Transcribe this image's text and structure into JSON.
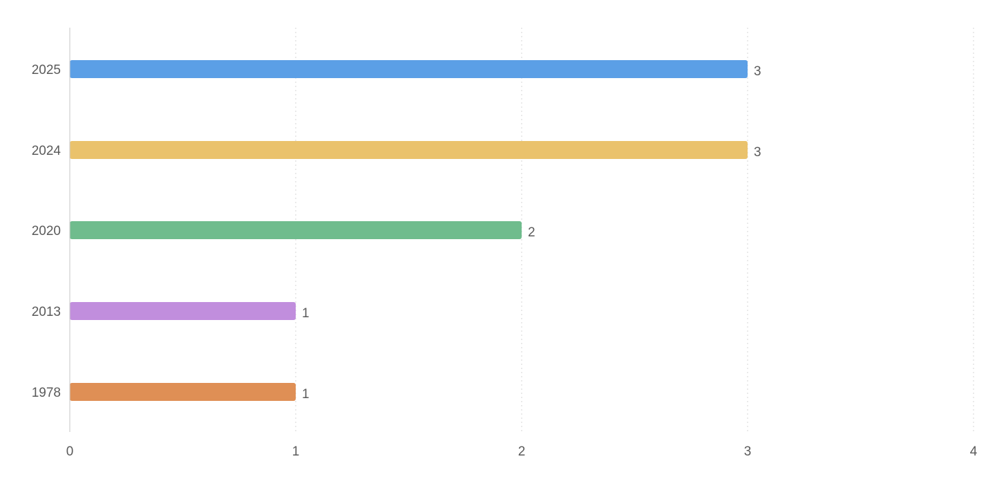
{
  "chart_data": {
    "type": "bar",
    "orientation": "horizontal",
    "title": "",
    "xlabel": "",
    "ylabel": "",
    "categories": [
      "2025",
      "2024",
      "2020",
      "2013",
      "1978"
    ],
    "values": [
      3,
      3,
      2,
      1,
      1
    ],
    "colors": [
      "#5b9fe6",
      "#eac26c",
      "#6fbc8d",
      "#c18edd",
      "#df8f55"
    ],
    "xlim": [
      0,
      4
    ],
    "xticks": [
      "0",
      "1",
      "2",
      "3",
      "4"
    ],
    "grid": "vertical dotted",
    "legend": "none",
    "data_labels": [
      "3",
      "3",
      "2",
      "1",
      "1"
    ]
  }
}
